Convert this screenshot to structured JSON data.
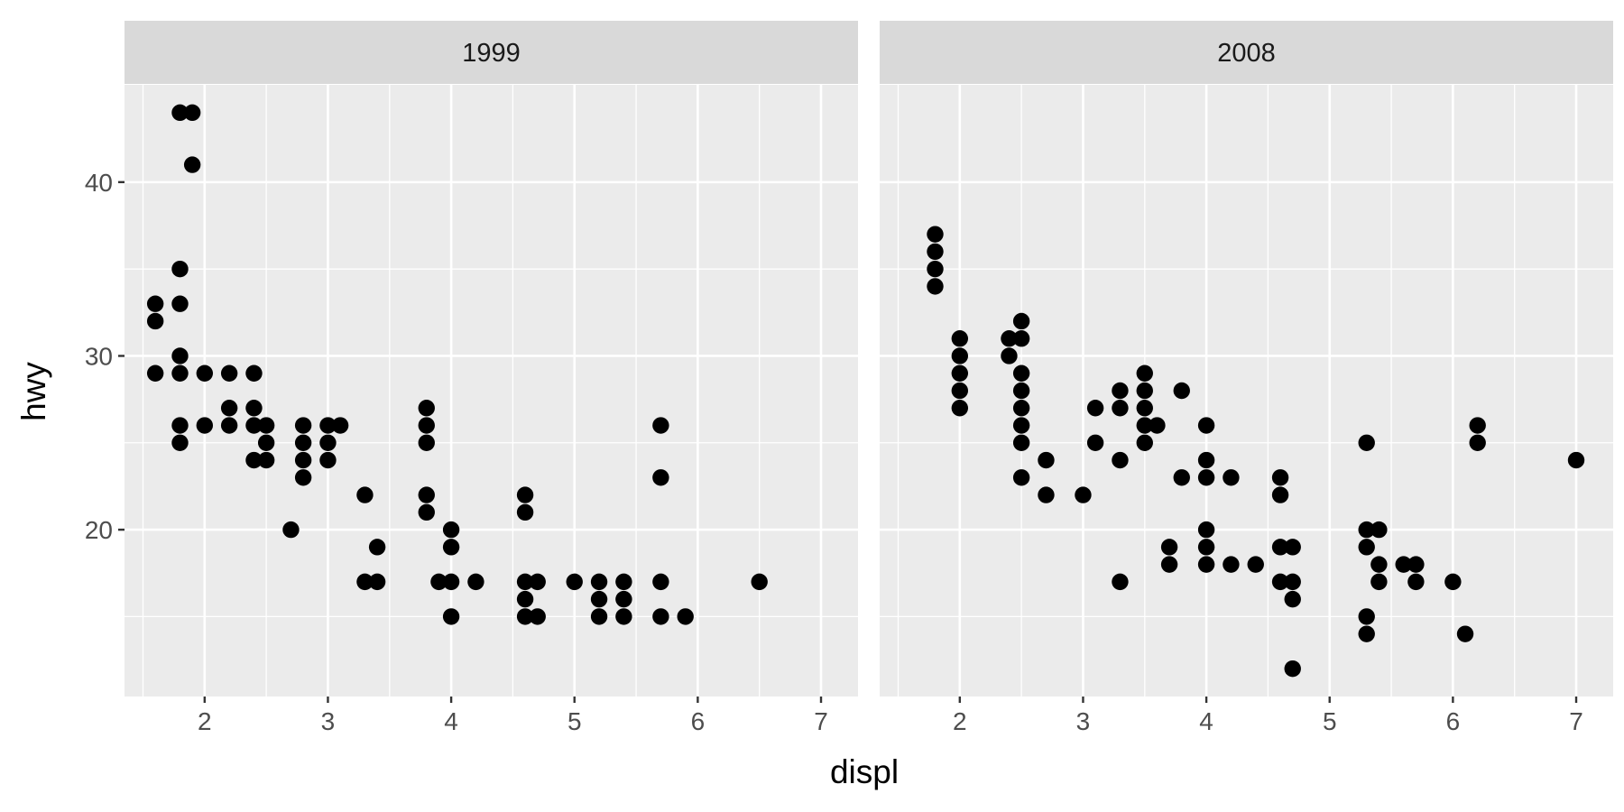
{
  "chart_data": {
    "type": "scatter",
    "xlabel": "displ",
    "ylabel": "hwy",
    "xlim": [
      1.35,
      7.3
    ],
    "ylim": [
      10.4,
      45.6
    ],
    "x_ticks": [
      2,
      3,
      4,
      5,
      6,
      7
    ],
    "y_ticks": [
      20,
      30,
      40
    ],
    "x_tick_labels": [
      "2",
      "3",
      "4",
      "5",
      "6",
      "7"
    ],
    "y_tick_labels": [
      "20",
      "30",
      "40"
    ],
    "grid": true,
    "point_color": "#000000",
    "panel_color": "#EBEBEB",
    "strip_color": "#D9D9D9",
    "facets": [
      {
        "label": "1999",
        "points": [
          [
            1.6,
            33
          ],
          [
            1.6,
            32
          ],
          [
            1.6,
            29
          ],
          [
            1.8,
            44
          ],
          [
            1.9,
            44
          ],
          [
            1.9,
            41
          ],
          [
            1.8,
            35
          ],
          [
            1.8,
            33
          ],
          [
            1.8,
            30
          ],
          [
            1.8,
            29
          ],
          [
            1.8,
            26
          ],
          [
            1.8,
            25
          ],
          [
            2.0,
            29
          ],
          [
            2.0,
            26
          ],
          [
            2.2,
            29
          ],
          [
            2.2,
            27
          ],
          [
            2.2,
            26
          ],
          [
            2.4,
            29
          ],
          [
            2.4,
            27
          ],
          [
            2.4,
            26
          ],
          [
            2.4,
            24
          ],
          [
            2.5,
            26
          ],
          [
            2.5,
            25
          ],
          [
            2.5,
            24
          ],
          [
            2.7,
            20
          ],
          [
            2.8,
            26
          ],
          [
            2.8,
            25
          ],
          [
            2.8,
            24
          ],
          [
            2.8,
            23
          ],
          [
            3.0,
            26
          ],
          [
            3.0,
            25
          ],
          [
            3.0,
            24
          ],
          [
            3.1,
            26
          ],
          [
            3.3,
            22
          ],
          [
            3.3,
            17
          ],
          [
            3.4,
            19
          ],
          [
            3.4,
            17
          ],
          [
            3.8,
            27
          ],
          [
            3.8,
            26
          ],
          [
            3.8,
            25
          ],
          [
            3.8,
            22
          ],
          [
            3.8,
            21
          ],
          [
            3.9,
            17
          ],
          [
            4.0,
            20
          ],
          [
            4.0,
            19
          ],
          [
            4.0,
            17
          ],
          [
            4.0,
            15
          ],
          [
            4.2,
            17
          ],
          [
            4.6,
            22
          ],
          [
            4.6,
            21
          ],
          [
            4.6,
            17
          ],
          [
            4.6,
            16
          ],
          [
            4.6,
            15
          ],
          [
            4.7,
            17
          ],
          [
            4.7,
            15
          ],
          [
            5.0,
            17
          ],
          [
            5.2,
            17
          ],
          [
            5.2,
            16
          ],
          [
            5.2,
            15
          ],
          [
            5.4,
            17
          ],
          [
            5.4,
            16
          ],
          [
            5.4,
            15
          ],
          [
            5.7,
            26
          ],
          [
            5.7,
            23
          ],
          [
            5.7,
            17
          ],
          [
            5.7,
            15
          ],
          [
            5.9,
            15
          ],
          [
            6.5,
            17
          ]
        ]
      },
      {
        "label": "2008",
        "points": [
          [
            1.8,
            37
          ],
          [
            1.8,
            36
          ],
          [
            1.8,
            35
          ],
          [
            1.8,
            34
          ],
          [
            2.0,
            31
          ],
          [
            2.0,
            30
          ],
          [
            2.0,
            29
          ],
          [
            2.0,
            28
          ],
          [
            2.0,
            27
          ],
          [
            2.4,
            31
          ],
          [
            2.4,
            30
          ],
          [
            2.5,
            32
          ],
          [
            2.5,
            31
          ],
          [
            2.5,
            29
          ],
          [
            2.5,
            28
          ],
          [
            2.5,
            27
          ],
          [
            2.5,
            26
          ],
          [
            2.5,
            25
          ],
          [
            2.5,
            23
          ],
          [
            2.7,
            24
          ],
          [
            2.7,
            22
          ],
          [
            3.0,
            22
          ],
          [
            3.1,
            27
          ],
          [
            3.1,
            25
          ],
          [
            3.3,
            28
          ],
          [
            3.3,
            27
          ],
          [
            3.3,
            24
          ],
          [
            3.3,
            17
          ],
          [
            3.5,
            29
          ],
          [
            3.5,
            28
          ],
          [
            3.5,
            27
          ],
          [
            3.5,
            26
          ],
          [
            3.5,
            25
          ],
          [
            3.6,
            26
          ],
          [
            3.7,
            19
          ],
          [
            3.7,
            18
          ],
          [
            3.8,
            28
          ],
          [
            3.8,
            23
          ],
          [
            4.0,
            26
          ],
          [
            4.0,
            24
          ],
          [
            4.0,
            23
          ],
          [
            4.0,
            20
          ],
          [
            4.0,
            19
          ],
          [
            4.0,
            18
          ],
          [
            4.2,
            23
          ],
          [
            4.2,
            18
          ],
          [
            4.4,
            18
          ],
          [
            4.6,
            23
          ],
          [
            4.6,
            22
          ],
          [
            4.6,
            19
          ],
          [
            4.6,
            17
          ],
          [
            4.7,
            19
          ],
          [
            4.7,
            17
          ],
          [
            4.7,
            16
          ],
          [
            4.7,
            12
          ],
          [
            5.3,
            25
          ],
          [
            5.3,
            20
          ],
          [
            5.3,
            19
          ],
          [
            5.3,
            15
          ],
          [
            5.3,
            14
          ],
          [
            5.4,
            20
          ],
          [
            5.4,
            18
          ],
          [
            5.4,
            17
          ],
          [
            5.6,
            18
          ],
          [
            5.7,
            18
          ],
          [
            5.7,
            17
          ],
          [
            6.0,
            17
          ],
          [
            6.1,
            14
          ],
          [
            6.2,
            26
          ],
          [
            6.2,
            25
          ],
          [
            7.0,
            24
          ]
        ]
      }
    ]
  }
}
